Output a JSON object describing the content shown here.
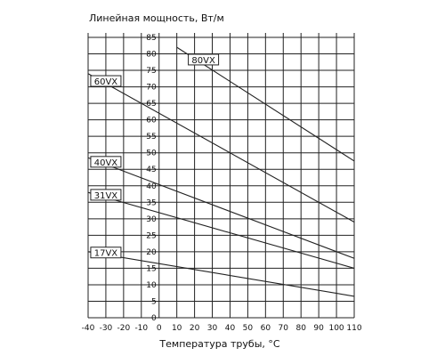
{
  "chart_data": {
    "type": "line",
    "ylabel": "Линейная мощность, Вт/м",
    "xlabel": "Температура трубы, °C",
    "xlim": [
      -40,
      110
    ],
    "ylim": [
      0,
      85
    ],
    "x_ticks": [
      -40,
      -30,
      -20,
      -10,
      0,
      10,
      20,
      30,
      40,
      50,
      60,
      70,
      80,
      90,
      100,
      110
    ],
    "y_ticks": [
      0,
      5,
      10,
      15,
      20,
      25,
      30,
      35,
      40,
      45,
      50,
      55,
      60,
      65,
      70,
      75,
      80,
      85
    ],
    "grid": true,
    "series": [
      {
        "name": "80VX",
        "x": [
          10,
          110
        ],
        "y": [
          82,
          47.5
        ]
      },
      {
        "name": "60VX",
        "x": [
          -40,
          110
        ],
        "y": [
          74,
          29
        ]
      },
      {
        "name": "40VX",
        "x": [
          -40,
          110
        ],
        "y": [
          48.5,
          18
        ]
      },
      {
        "name": "31VX",
        "x": [
          -40,
          110
        ],
        "y": [
          38,
          15
        ]
      },
      {
        "name": "17VX",
        "x": [
          -40,
          110
        ],
        "y": [
          20,
          6.5
        ]
      }
    ]
  }
}
